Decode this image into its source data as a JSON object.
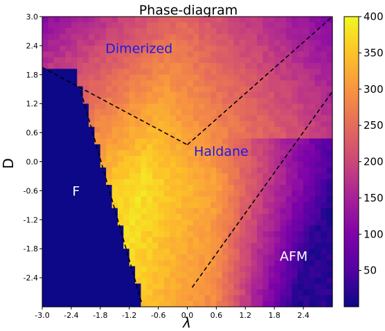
{
  "chart_data": {
    "type": "heatmap",
    "title": "Phase-diagram",
    "xlabel": "λ",
    "ylabel": "D",
    "xlim": [
      -3.0,
      3.0
    ],
    "ylim": [
      -3.0,
      3.0
    ],
    "x_ticks": [
      "-3.0",
      "-2.4",
      "-1.8",
      "-1.2",
      "-0.6",
      "0.0",
      "0.6",
      "1.2",
      "1.8",
      "2.4"
    ],
    "y_ticks": [
      "3.0",
      "2.4",
      "1.8",
      "1.2",
      "0.6",
      "0.0",
      "-0.6",
      "-1.2",
      "-1.8",
      "-2.4"
    ],
    "colorbar": {
      "range": [
        0,
        400
      ],
      "ticks": [
        "400",
        "350",
        "300",
        "250",
        "200",
        "150",
        "100",
        "50"
      ],
      "colormap": "plasma"
    },
    "phase_boundaries": [
      {
        "from": [
          -3.0,
          1.95
        ],
        "to": [
          0.0,
          0.35
        ]
      },
      {
        "from": [
          0.0,
          0.35
        ],
        "to": [
          3.0,
          3.0
        ]
      },
      {
        "from": [
          0.1,
          -2.6
        ],
        "to": [
          3.0,
          1.45
        ]
      },
      {
        "from": [
          -2.2,
          1.45
        ],
        "to": [
          -0.95,
          -2.9
        ]
      }
    ],
    "regions": [
      {
        "label": "Dimerized",
        "x": -1.0,
        "y": 2.25,
        "color": "#1a1ae6"
      },
      {
        "label": "Haldane",
        "x": 0.7,
        "y": 0.12,
        "color": "#1a1ae6"
      },
      {
        "label": "F",
        "x": -2.3,
        "y": -0.7,
        "color": "#ffffff"
      },
      {
        "label": "AFM",
        "x": 2.2,
        "y": -2.05,
        "color": "#ffffff"
      }
    ],
    "grid": false,
    "colors": {
      "ferro_region": "#0d0887",
      "boundary": "#000000"
    }
  }
}
